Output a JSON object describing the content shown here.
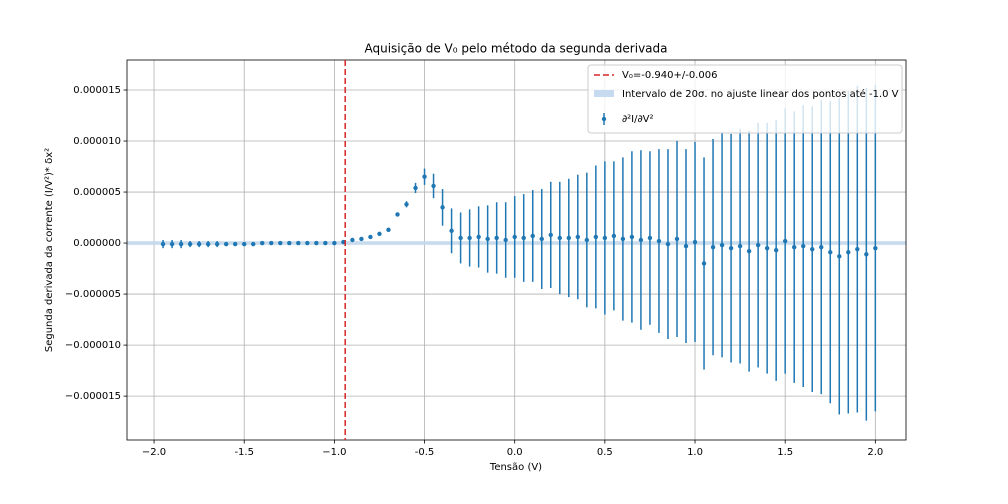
{
  "chart_data": {
    "type": "errorbar",
    "title": "Aquisição de V₀ pelo método da segunda derivada",
    "xlabel": "Tensão (V)",
    "ylabel": "Segunda derivada da corrente (I/V²)* δx²",
    "xlim": [
      -2.15,
      2.17
    ],
    "ylim": [
      -1.93e-05,
      1.794e-05
    ],
    "xticks": [
      {
        "value": -2.0,
        "label": "−2.0"
      },
      -1.5,
      {
        "value": -1.0,
        "label": "−1.0"
      },
      -0.5,
      {
        "value": 0.0,
        "label": "0.0"
      },
      0.5,
      {
        "value": 1.0,
        "label": "1.0"
      },
      1.5,
      {
        "value": 2.0,
        "label": "2.0"
      }
    ],
    "yticks": [
      {
        "value": -1.5e-05,
        "label": "−0.000015"
      },
      {
        "value": -1e-05,
        "label": "−0.000010"
      },
      {
        "value": -5e-06,
        "label": "−0.000005"
      },
      {
        "value": 0,
        "label": "0.000000"
      },
      5e-06,
      {
        "value": 1e-05,
        "label": "0.000010"
      },
      1.5e-05
    ],
    "grid": true,
    "legend": "upper right",
    "vline": {
      "name": "V₀=-0.940+/-0.006",
      "x": -0.94,
      "color": "#d62728"
    },
    "band": {
      "name": "Intervalo de 20σ. no ajuste linear dos pontos até -1.0 V",
      "color": "#c6dbef",
      "lower": -2e-07,
      "upper": 2e-07
    },
    "x": [
      -1.95,
      -1.9,
      -1.85,
      -1.8,
      -1.75,
      -1.7,
      -1.65,
      -1.6,
      -1.55,
      -1.5,
      -1.45,
      -1.4,
      -1.35,
      -1.3,
      -1.25,
      -1.2,
      -1.15,
      -1.1,
      -1.05,
      -1.0,
      -0.95,
      -0.9,
      -0.85,
      -0.8,
      -0.75,
      -0.7,
      -0.65,
      -0.6,
      -0.55,
      -0.5,
      -0.45,
      -0.4,
      -0.35,
      -0.3,
      -0.25,
      -0.2,
      -0.15,
      -0.1,
      -0.05,
      0.0,
      0.05,
      0.1,
      0.15,
      0.2,
      0.25,
      0.3,
      0.35,
      0.4,
      0.45,
      0.5,
      0.55,
      0.6,
      0.65,
      0.7,
      0.75,
      0.8,
      0.85,
      0.9,
      0.95,
      1.0,
      1.05,
      1.1,
      1.15,
      1.2,
      1.25,
      1.3,
      1.35,
      1.4,
      1.45,
      1.5,
      1.55,
      1.6,
      1.65,
      1.7,
      1.75,
      1.8,
      1.85,
      1.9,
      1.95,
      2.0
    ],
    "series": [
      {
        "name": "∂²I/∂V²",
        "color": "#1f77b4",
        "values": [
          -1e-07,
          -1e-07,
          -1e-07,
          -1e-07,
          -1e-07,
          -1e-07,
          -1e-07,
          -1e-07,
          -1e-07,
          -1e-07,
          -1e-07,
          0,
          0,
          0,
          0,
          0,
          0,
          0,
          0,
          0,
          1e-07,
          3e-07,
          4e-07,
          6e-07,
          9e-07,
          1.3e-06,
          2.8e-06,
          3.8e-06,
          5.4e-06,
          6.5e-06,
          5.6e-06,
          3.5e-06,
          1.2e-06,
          5e-07,
          5e-07,
          6e-07,
          4e-07,
          5e-07,
          3e-07,
          6e-07,
          5e-07,
          7e-07,
          4e-07,
          8e-07,
          5e-07,
          5e-07,
          6e-07,
          3e-07,
          6e-07,
          5e-07,
          7e-07,
          4e-07,
          6e-07,
          3e-07,
          5e-07,
          2e-07,
          -1e-07,
          4e-07,
          -3e-07,
          1e-07,
          -2e-06,
          -4e-07,
          -2e-07,
          -5e-07,
          -3e-07,
          -8e-07,
          -2e-07,
          -5e-07,
          -7e-07,
          2e-07,
          -4e-07,
          -3e-07,
          -6e-07,
          -4e-07,
          -9e-07,
          -1.3e-06,
          -9e-07,
          -6e-07,
          -1.1e-06,
          -5e-07
        ],
        "errors": [
          4e-07,
          4e-07,
          4e-07,
          3e-07,
          3e-07,
          3e-07,
          3e-07,
          2e-07,
          2e-07,
          2e-07,
          2e-07,
          2e-07,
          1e-07,
          1e-07,
          1e-07,
          1e-07,
          1e-07,
          1e-07,
          1e-07,
          1e-07,
          1e-07,
          1e-07,
          1e-07,
          1e-07,
          1e-07,
          2e-07,
          2e-07,
          3e-07,
          5e-07,
          8e-07,
          1.2e-06,
          1.8e-06,
          2.2e-06,
          2.5e-06,
          2.8e-06,
          3e-06,
          3.3e-06,
          3.5e-06,
          3.7e-06,
          4e-06,
          4.3e-06,
          4.5e-06,
          4.9e-06,
          5.2e-06,
          5.5e-06,
          5.8e-06,
          6.1e-06,
          6.6e-06,
          7e-06,
          7.5e-06,
          7.3e-06,
          8e-06,
          8.4e-06,
          8.8e-06,
          8.5e-06,
          9e-06,
          9.3e-06,
          9.6e-06,
          9.5e-06,
          9.8e-06,
          1.04e-05,
          1.06e-05,
          1.1e-05,
          1.12e-05,
          1.15e-05,
          1.18e-05,
          1.2e-05,
          1.23e-05,
          1.28e-05,
          1.3e-05,
          1.33e-05,
          1.38e-05,
          1.4e-05,
          1.44e-05,
          1.48e-05,
          1.55e-05,
          1.58e-05,
          1.6e-05,
          1.63e-05,
          1.6e-05
        ]
      }
    ]
  }
}
